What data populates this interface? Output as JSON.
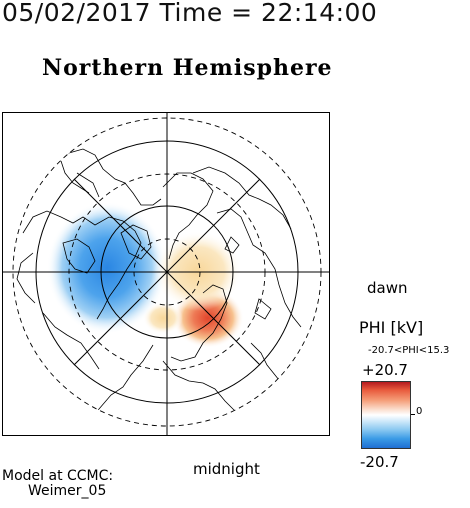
{
  "header": {
    "datetime": "05/02/2017 Time = 22:14:00",
    "hemisphere": "Northern Hemisphere"
  },
  "map": {
    "dawn_label": "dawn",
    "midnight_label": "midnight",
    "projection": "polar stereographic centered on north geomagnetic pole",
    "potential_cells": [
      {
        "sign": "negative",
        "color": "#2f8fe6",
        "peak_kV": -20.7,
        "location": "dusk-side (left of pole)"
      },
      {
        "sign": "positive",
        "color": "#e2452c",
        "peak_kV": 15.3,
        "location": "dawn/night side (right-bottom of pole)"
      }
    ]
  },
  "colorbar": {
    "title": "PHI [kV]",
    "range_text": "-20.7<PHI<15.3",
    "max_label": "+20.7",
    "zero_label": "0",
    "min_label": "-20.7",
    "colors": {
      "high": "#b51a1e",
      "mid": "#ffffff",
      "low": "#1f6fd3"
    }
  },
  "footer": {
    "model_line1": "Model at CCMC:",
    "model_line2": "Weimer_05"
  }
}
